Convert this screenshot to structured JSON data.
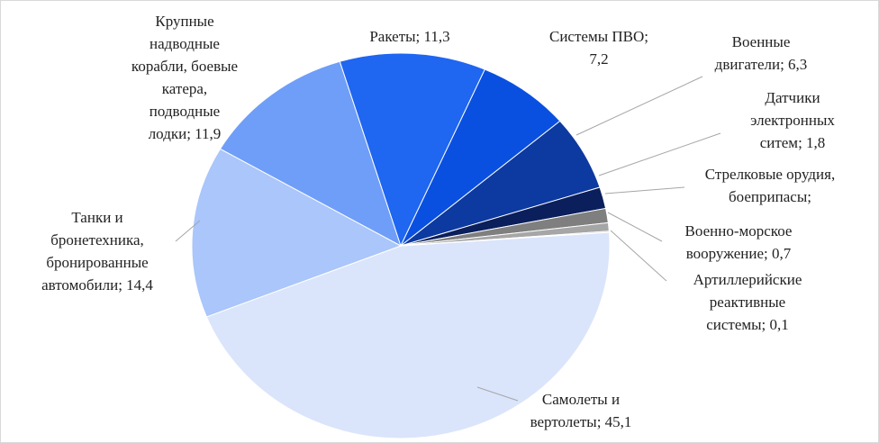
{
  "chart_data": {
    "type": "pie",
    "values": [
      45.1,
      14.4,
      11.9,
      11.3,
      7.2,
      6.3,
      1.8,
      1.2,
      0.7,
      0.1
    ],
    "value_labels": [
      "Самолеты и вертолеты; 45,1",
      "Танки и бронетехника, бронированные автомобили; 14,4",
      "Крупные надводные корабли, боевые катера, подводные лодки; 11,9",
      "Ракеты; 11,3",
      "Системы ПВО; 7,2",
      "Военные двигатели; 6,3",
      "Датчики электронных ситем; 1,8",
      "Стрелковые орудия, боеприпасы; 1,2",
      "Военно-морское вооружение; 0,7",
      "Артиллерийские реактивные системы; 0,1"
    ],
    "colors": [
      "#dae5fb",
      "#aac6fa",
      "#6f9ef9",
      "#1f66f0",
      "#0a50e0",
      "#0d3aa0",
      "#0a1f5c",
      "#7f7f7f",
      "#a6a6a6",
      "#d0d0d0"
    ]
  }
}
